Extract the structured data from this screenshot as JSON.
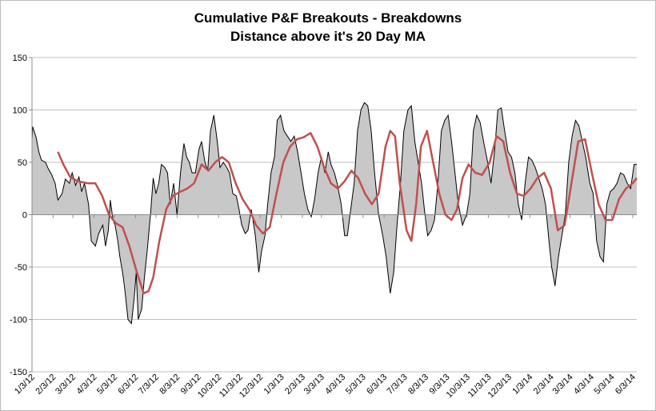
{
  "chart_data": {
    "type": "line",
    "title": "Cumulative P&F Breakouts - Breakdowns",
    "subtitle": "Distance above it's 20 Day MA",
    "xlabel": "",
    "ylabel": "",
    "ylim": [
      -150,
      150
    ],
    "yticks": [
      150,
      100,
      50,
      0,
      -50,
      -100,
      -150
    ],
    "ytick_labels": [
      "150",
      "100",
      "50",
      "0",
      "-50",
      "-100",
      "-150"
    ],
    "xlim": [
      "2012-01-03",
      "2014-06-09"
    ],
    "x_tick_dates": [
      "2012-01-03",
      "2012-02-03",
      "2012-03-03",
      "2012-04-03",
      "2012-05-03",
      "2012-06-03",
      "2012-07-03",
      "2012-08-03",
      "2012-09-03",
      "2012-10-03",
      "2012-11-03",
      "2012-12-03",
      "2013-01-03",
      "2013-02-03",
      "2013-03-03",
      "2013-04-03",
      "2013-05-03",
      "2013-06-03",
      "2013-07-03",
      "2013-08-03",
      "2013-09-03",
      "2013-10-03",
      "2013-11-03",
      "2013-12-03",
      "2014-01-03",
      "2014-02-03",
      "2014-03-03",
      "2014-04-03",
      "2014-05-03",
      "2014-06-03"
    ],
    "x_tick_labels": [
      "1/3/12",
      "2/3/12",
      "3/3/12",
      "4/3/12",
      "5/3/12",
      "6/3/12",
      "7/3/12",
      "8/3/12",
      "9/3/12",
      "10/3/12",
      "11/3/12",
      "12/3/12",
      "1/3/13",
      "2/3/13",
      "3/3/13",
      "4/3/13",
      "5/3/13",
      "6/3/13",
      "7/3/13",
      "8/3/13",
      "9/3/13",
      "10/3/13",
      "11/3/13",
      "12/3/13",
      "1/3/14",
      "2/3/14",
      "3/3/14",
      "4/3/14",
      "5/3/14",
      "6/3/14"
    ],
    "grid": true,
    "legend": "none",
    "series": [
      {
        "kind": "area",
        "color": "#000000",
        "fill": "#c8c8c8",
        "x": [
          "2012-01-03",
          "2012-01-04",
          "2012-01-05",
          "2012-01-09",
          "2012-01-13",
          "2012-01-17",
          "2012-01-23",
          "2012-01-26",
          "2012-02-01",
          "2012-02-06",
          "2012-02-10",
          "2012-02-16",
          "2012-02-21",
          "2012-02-27",
          "2012-03-02",
          "2012-03-07",
          "2012-03-12",
          "2012-03-16",
          "2012-03-20",
          "2012-03-26",
          "2012-03-30",
          "2012-04-05",
          "2012-04-10",
          "2012-04-16",
          "2012-04-20",
          "2012-04-24",
          "2012-04-27",
          "2012-05-01",
          "2012-05-04",
          "2012-05-08",
          "2012-05-11",
          "2012-05-15",
          "2012-05-18",
          "2012-05-23",
          "2012-05-28",
          "2012-06-01",
          "2012-06-04",
          "2012-06-07",
          "2012-06-12",
          "2012-06-16",
          "2012-06-20",
          "2012-06-25",
          "2012-06-29",
          "2012-07-03",
          "2012-07-07",
          "2012-07-11",
          "2012-07-16",
          "2012-07-20",
          "2012-07-24",
          "2012-07-29",
          "2012-08-03",
          "2012-08-08",
          "2012-08-13",
          "2012-08-17",
          "2012-08-21",
          "2012-08-25",
          "2012-08-30",
          "2012-09-04",
          "2012-09-08",
          "2012-09-13",
          "2012-09-17",
          "2012-09-21",
          "2012-09-26",
          "2012-10-01",
          "2012-10-05",
          "2012-10-10",
          "2012-10-15",
          "2012-10-19",
          "2012-10-24",
          "2012-10-29",
          "2012-11-02",
          "2012-11-06",
          "2012-11-11",
          "2012-11-15",
          "2012-11-20",
          "2012-11-26",
          "2012-12-01",
          "2012-12-05",
          "2012-12-10",
          "2012-12-14",
          "2012-12-19",
          "2012-12-24",
          "2012-12-28",
          "2013-01-02",
          "2013-01-07",
          "2013-01-12",
          "2013-01-17",
          "2013-01-22",
          "2013-01-27",
          "2013-02-01",
          "2013-02-06",
          "2013-02-11",
          "2013-02-16",
          "2013-02-21",
          "2013-02-26",
          "2013-03-03",
          "2013-03-08",
          "2013-03-13",
          "2013-03-17",
          "2013-03-22",
          "2013-03-26",
          "2013-04-01",
          "2013-04-06",
          "2013-04-10",
          "2013-04-15",
          "2013-04-20",
          "2013-04-25",
          "2013-04-30",
          "2013-05-05",
          "2013-05-10",
          "2013-05-15",
          "2013-05-20",
          "2013-05-26",
          "2013-06-01",
          "2013-06-06",
          "2013-06-12",
          "2013-06-17",
          "2013-06-22",
          "2013-06-27",
          "2013-07-02",
          "2013-07-08",
          "2013-07-13",
          "2013-07-18",
          "2013-07-23",
          "2013-07-28",
          "2013-08-02",
          "2013-08-06",
          "2013-08-11",
          "2013-08-16",
          "2013-08-21",
          "2013-08-26",
          "2013-08-31",
          "2013-09-05",
          "2013-09-10",
          "2013-09-15",
          "2013-09-20",
          "2013-09-26",
          "2013-10-02",
          "2013-10-07",
          "2013-10-12",
          "2013-10-17",
          "2013-10-22",
          "2013-10-27",
          "2013-11-02",
          "2013-11-07",
          "2013-11-12",
          "2013-11-17",
          "2013-11-22",
          "2013-11-27",
          "2013-12-02",
          "2013-12-07",
          "2013-12-12",
          "2013-12-17",
          "2013-12-22",
          "2013-12-27",
          "2014-01-01",
          "2014-01-06",
          "2014-01-11",
          "2014-01-16",
          "2014-01-21",
          "2014-01-26",
          "2014-01-31",
          "2014-02-04",
          "2014-02-09",
          "2014-02-14",
          "2014-02-19",
          "2014-02-24",
          "2014-03-01",
          "2014-03-06",
          "2014-03-11",
          "2014-03-16",
          "2014-03-21",
          "2014-03-26",
          "2014-04-01",
          "2014-04-06",
          "2014-04-11",
          "2014-04-16",
          "2014-04-21",
          "2014-04-26",
          "2014-05-01",
          "2014-05-06",
          "2014-05-11",
          "2014-05-16",
          "2014-05-21",
          "2014-05-26",
          "2014-05-31",
          "2014-06-05",
          "2014-06-09"
        ],
        "values": [
          72,
          84,
          82,
          74,
          60,
          52,
          50,
          45,
          38,
          30,
          14,
          20,
          34,
          30,
          40,
          28,
          36,
          22,
          30,
          10,
          -25,
          -30,
          -18,
          -10,
          -30,
          -15,
          14,
          -5,
          -10,
          -25,
          -40,
          -55,
          -70,
          -100,
          -104,
          -80,
          -55,
          -100,
          -90,
          -60,
          -35,
          0,
          35,
          20,
          30,
          48,
          45,
          40,
          10,
          30,
          0,
          40,
          68,
          55,
          50,
          40,
          40,
          62,
          70,
          50,
          42,
          80,
          95,
          70,
          45,
          50,
          45,
          40,
          20,
          18,
          5,
          -10,
          -18,
          -15,
          5,
          -20,
          -55,
          -35,
          -20,
          10,
          40,
          55,
          90,
          95,
          80,
          75,
          70,
          75,
          60,
          40,
          20,
          5,
          -2,
          15,
          40,
          55,
          40,
          60,
          48,
          40,
          30,
          10,
          -20,
          -20,
          5,
          30,
          80,
          100,
          107,
          104,
          80,
          40,
          0,
          -20,
          -40,
          -75,
          -55,
          -10,
          30,
          80,
          100,
          104,
          70,
          50,
          30,
          0,
          -20,
          -15,
          -5,
          30,
          80,
          90,
          95,
          70,
          40,
          10,
          -10,
          0,
          20,
          80,
          95,
          88,
          70,
          50,
          30,
          60,
          100,
          102,
          80,
          60,
          55,
          40,
          10,
          -5,
          30,
          55,
          52,
          45,
          35,
          25,
          10,
          -25,
          -50,
          -68,
          -40,
          -20,
          0,
          50,
          75,
          90,
          85,
          70,
          55,
          30,
          20,
          -25,
          -40,
          -45,
          10,
          22,
          25,
          30,
          40,
          38,
          30,
          25,
          48,
          48
        ]
      },
      {
        "kind": "line",
        "color": "#c0504d",
        "x": [
          "2012-02-10",
          "2012-02-18",
          "2012-02-28",
          "2012-03-10",
          "2012-03-25",
          "2012-04-05",
          "2012-04-15",
          "2012-04-25",
          "2012-05-05",
          "2012-05-15",
          "2012-05-25",
          "2012-06-05",
          "2012-06-15",
          "2012-06-22",
          "2012-06-29",
          "2012-07-08",
          "2012-07-18",
          "2012-07-28",
          "2012-08-08",
          "2012-08-18",
          "2012-08-28",
          "2012-09-08",
          "2012-09-18",
          "2012-09-28",
          "2012-10-08",
          "2012-10-18",
          "2012-10-28",
          "2012-11-07",
          "2012-11-17",
          "2012-11-27",
          "2012-12-07",
          "2012-12-17",
          "2012-12-27",
          "2013-01-06",
          "2013-01-16",
          "2013-01-26",
          "2013-02-05",
          "2013-02-15",
          "2013-02-25",
          "2013-03-07",
          "2013-03-17",
          "2013-03-27",
          "2013-04-06",
          "2013-04-16",
          "2013-04-26",
          "2013-05-06",
          "2013-05-16",
          "2013-05-26",
          "2013-06-05",
          "2013-06-12",
          "2013-06-19",
          "2013-06-26",
          "2013-07-06",
          "2013-07-13",
          "2013-07-20",
          "2013-07-27",
          "2013-08-05",
          "2013-08-14",
          "2013-08-23",
          "2013-09-01",
          "2013-09-10",
          "2013-09-18",
          "2013-09-26",
          "2013-10-05",
          "2013-10-15",
          "2013-10-25",
          "2013-11-05",
          "2013-11-15",
          "2013-11-25",
          "2013-12-05",
          "2013-12-15",
          "2013-12-25",
          "2014-01-04",
          "2014-01-14",
          "2014-01-24",
          "2014-02-03",
          "2014-02-13",
          "2014-02-23",
          "2014-03-05",
          "2014-03-15",
          "2014-03-25",
          "2014-04-04",
          "2014-04-14",
          "2014-04-24",
          "2014-05-04",
          "2014-05-14",
          "2014-05-24",
          "2014-06-03",
          "2014-06-09"
        ],
        "values": [
          60,
          48,
          36,
          32,
          30,
          30,
          18,
          0,
          -8,
          -12,
          -30,
          -55,
          -75,
          -73,
          -60,
          -25,
          5,
          18,
          22,
          25,
          30,
          48,
          42,
          50,
          55,
          50,
          30,
          15,
          5,
          -10,
          -18,
          -12,
          20,
          50,
          65,
          72,
          74,
          78,
          65,
          45,
          30,
          25,
          32,
          42,
          35,
          20,
          10,
          20,
          65,
          80,
          75,
          30,
          -15,
          -25,
          10,
          65,
          80,
          50,
          20,
          0,
          -5,
          5,
          35,
          48,
          40,
          38,
          50,
          75,
          70,
          40,
          20,
          18,
          25,
          35,
          40,
          25,
          -15,
          -10,
          30,
          70,
          72,
          40,
          10,
          -5,
          -5,
          15,
          25,
          30,
          35
        ]
      }
    ]
  }
}
